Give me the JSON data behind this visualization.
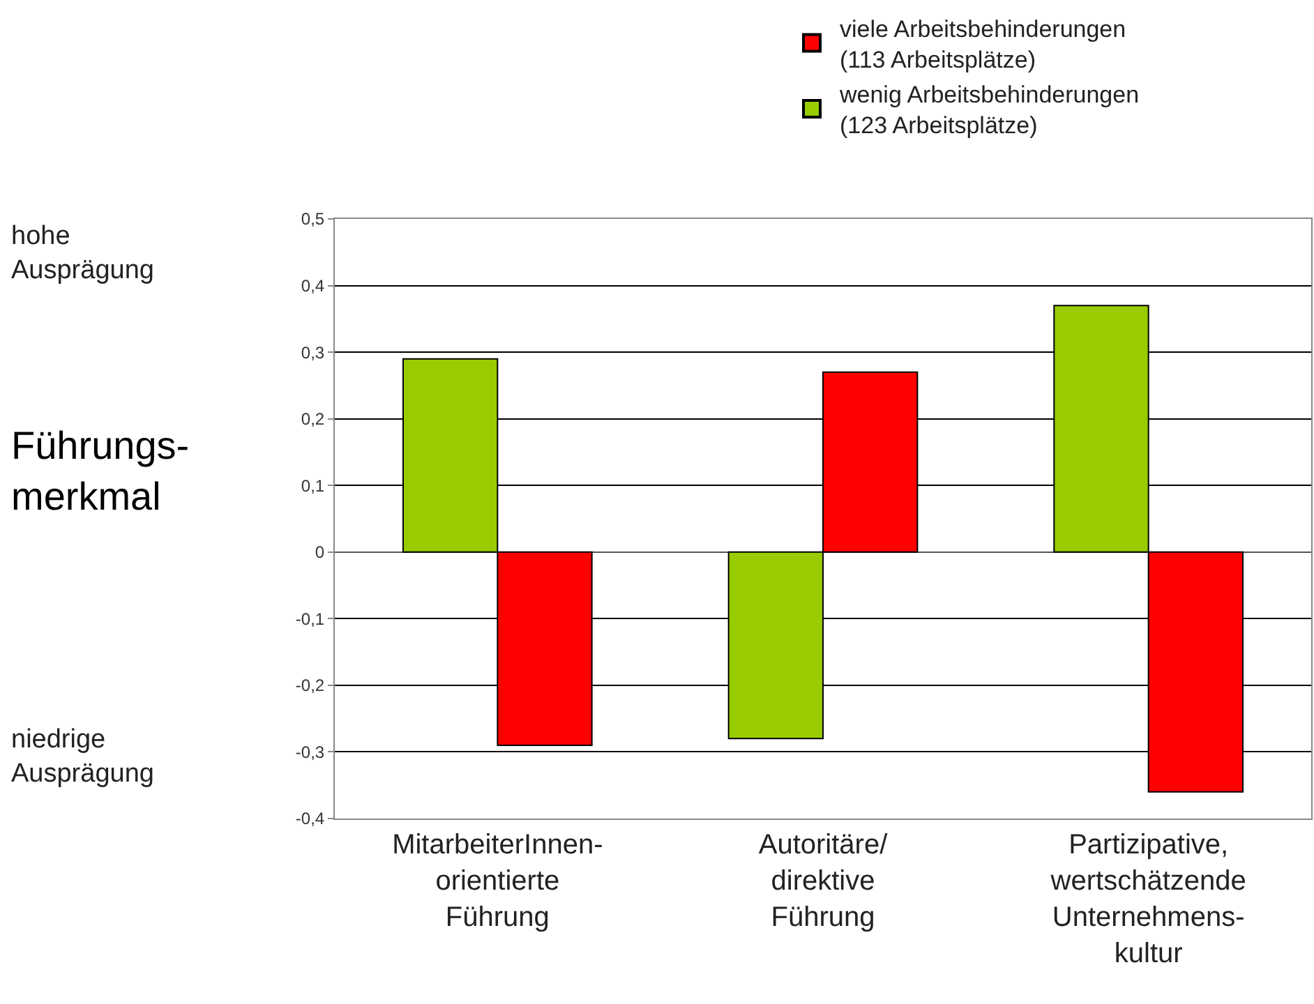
{
  "chart_data": {
    "type": "bar",
    "categories": [
      "MitarbeiterInnen-\norientierte\nFührung",
      "Autoritäre/\ndirektive\nFührung",
      "Partizipative,\nwertschätzende\nUnternehmens-\nkultur"
    ],
    "series": [
      {
        "name": "wenig Arbeitsbehinderungen\n(123 Arbeitsplätze)",
        "color": "#99cc00",
        "values": [
          0.29,
          -0.28,
          0.37
        ]
      },
      {
        "name": "viele Arbeitsbehinderungen\n(113 Arbeitsplätze)",
        "color": "#ff0000",
        "values": [
          -0.29,
          0.27,
          -0.36
        ]
      }
    ],
    "ylabel": "Führungs-\nmerkmal",
    "annotations": [
      "hohe\nAusprägung",
      "niedrige\nAusprägung"
    ],
    "ylim": [
      -0.4,
      0.5
    ],
    "yticks": [
      {
        "value": -0.4,
        "label": "-0,4"
      },
      {
        "value": -0.3,
        "label": "-0,3"
      },
      {
        "value": -0.2,
        "label": "-0,2"
      },
      {
        "value": -0.1,
        "label": "-0,1"
      },
      0,
      {
        "value": 0.1,
        "label": "0,1"
      },
      {
        "value": 0.2,
        "label": "0,2"
      },
      {
        "value": 0.3,
        "label": "0,3"
      },
      {
        "value": 0.4,
        "label": "0,4"
      },
      {
        "value": 0.5,
        "label": "0,5"
      }
    ],
    "grid": "y",
    "legend": "top right"
  }
}
